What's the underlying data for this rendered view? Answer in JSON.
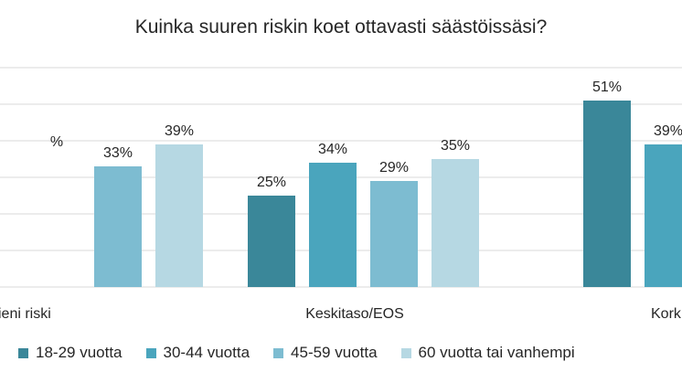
{
  "chart_data": {
    "type": "bar",
    "title": "Kuinka suuren riskin koet ottavasti säästöissäsi?",
    "categories": [
      "Pieni riski",
      "Keskitaso/EOS",
      "Korkea riski"
    ],
    "visible_category_labels": [
      "ieni riski",
      "Keskitaso/EOS",
      "Kork"
    ],
    "series": [
      {
        "name": "18-29 vuotta",
        "color": "#3a8799",
        "values": [
          null,
          25,
          51
        ],
        "labels": [
          "",
          "25%",
          "51%"
        ]
      },
      {
        "name": "30-44 vuotta",
        "color": "#4aa5bd",
        "values": [
          null,
          34,
          39
        ],
        "labels": [
          "%",
          "34%",
          "39%"
        ]
      },
      {
        "name": "45-59 vuotta",
        "color": "#7dbcd1",
        "values": [
          33,
          29,
          null
        ],
        "labels": [
          "33%",
          "29%",
          ""
        ]
      },
      {
        "name": "60 vuotta tai vanhempi",
        "color": "#b6d8e3",
        "values": [
          39,
          35,
          null
        ],
        "labels": [
          "39%",
          "35%",
          ""
        ]
      }
    ],
    "ylim": [
      0,
      60
    ],
    "grid": true,
    "legend_position": "bottom",
    "xlabel": "",
    "ylabel": ""
  }
}
